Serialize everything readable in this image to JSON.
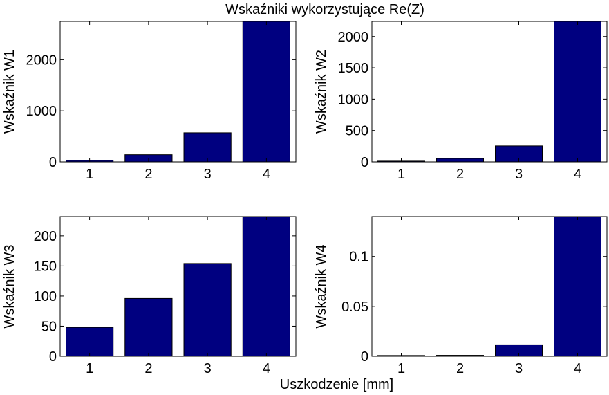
{
  "figure": {
    "title": "Wskaźniki wykorzystujące Re(Z)",
    "xlabel": "Uszkodzenie [mm]",
    "bar_color": "#000080"
  },
  "chart_data": [
    {
      "type": "bar",
      "categories": [
        "1",
        "2",
        "3",
        "4"
      ],
      "values": [
        30,
        140,
        570,
        2750
      ],
      "ylabel": "Wskaźnik W1",
      "ylim": [
        0,
        2750
      ],
      "yticks": [
        0,
        1000,
        2000
      ],
      "ytick_labels": [
        "0",
        "1000",
        "2000"
      ],
      "grid": false
    },
    {
      "type": "bar",
      "categories": [
        "1",
        "2",
        "3",
        "4"
      ],
      "values": [
        12,
        55,
        255,
        2240
      ],
      "ylabel": "Wskaźnik W2",
      "ylim": [
        0,
        2240
      ],
      "yticks": [
        0,
        500,
        1000,
        1500,
        2000
      ],
      "ytick_labels": [
        "0",
        "500",
        "1000",
        "1500",
        "2000"
      ],
      "grid": false
    },
    {
      "type": "bar",
      "categories": [
        "1",
        "2",
        "3",
        "4"
      ],
      "values": [
        48,
        96,
        154,
        232
      ],
      "ylabel": "Wskaźnik W3",
      "ylim": [
        0,
        232
      ],
      "yticks": [
        0,
        50,
        100,
        150,
        200
      ],
      "ytick_labels": [
        "0",
        "50",
        "100",
        "150",
        "200"
      ],
      "grid": false
    },
    {
      "type": "bar",
      "categories": [
        "1",
        "2",
        "3",
        "4"
      ],
      "values": [
        0.0008,
        0.001,
        0.0115,
        0.14
      ],
      "ylabel": "Wskaźnik W4",
      "ylim": [
        0,
        0.14
      ],
      "yticks": [
        0,
        0.05,
        0.1
      ],
      "ytick_labels": [
        "0",
        "0.05",
        "0.1"
      ],
      "grid": false
    }
  ]
}
